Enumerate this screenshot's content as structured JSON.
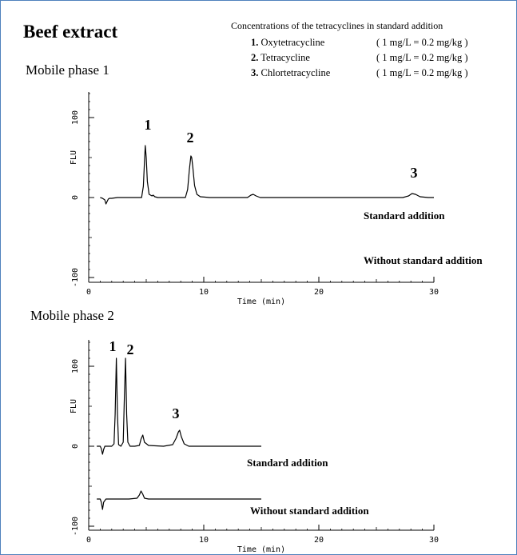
{
  "title": "Beef extract",
  "concentrations": {
    "heading": "Concentrations of the tetracyclines in standard addition",
    "items": [
      {
        "num": "1.",
        "name": "Oxytetracycline",
        "value": "( 1 mg/L = 0.2 mg/kg )"
      },
      {
        "num": "2.",
        "name": "Tetracycline",
        "value": "( 1 mg/L = 0.2 mg/kg )"
      },
      {
        "num": "3.",
        "name": "Chlortetracycline",
        "value": "( 1 mg/L = 0.2 mg/kg )"
      }
    ]
  },
  "phase_labels": [
    "Mobile phase 1",
    "Mobile phase 2"
  ],
  "chart_data": [
    {
      "type": "line",
      "title": "Mobile phase 1",
      "xlabel": "Time (min)",
      "ylabel": "FLU",
      "xlim": [
        0,
        30
      ],
      "ylim": [
        -110,
        135
      ],
      "xticks": [
        0,
        10,
        20,
        30
      ],
      "yticks": [
        -100,
        0,
        100
      ],
      "grid": false,
      "peaks": [
        {
          "label": "1",
          "time": 4.9,
          "height": 65
        },
        {
          "label": "2",
          "time": 8.9,
          "height": 52
        },
        {
          "label": "3",
          "time": 28.2,
          "height": 5
        }
      ],
      "annotations": [
        "Standard addition",
        "Without standard addition"
      ],
      "series": [
        {
          "name": "Standard addition",
          "x": [
            1.0,
            1.2,
            1.4,
            1.5,
            1.6,
            1.7,
            1.8,
            2.0,
            2.5,
            3.0,
            4.0,
            4.6,
            4.75,
            4.85,
            4.92,
            5.0,
            5.1,
            5.25,
            5.5,
            5.6,
            5.75,
            6.0,
            7.0,
            8.4,
            8.6,
            8.75,
            8.88,
            8.95,
            9.05,
            9.2,
            9.4,
            9.7,
            10.5,
            12.0,
            13.8,
            14.1,
            14.3,
            14.55,
            14.9,
            16.0,
            20.0,
            24.0,
            27.3,
            27.8,
            28.1,
            28.4,
            28.8,
            29.5,
            30.0
          ],
          "y": [
            0,
            -1,
            -3,
            -8,
            -5,
            -2,
            -1,
            -1,
            0,
            0,
            0,
            0,
            14,
            45,
            65,
            50,
            20,
            4,
            2,
            3,
            1,
            0,
            0,
            0,
            10,
            35,
            52,
            50,
            38,
            15,
            4,
            1,
            0,
            0,
            0,
            3,
            4,
            2,
            0,
            0,
            0,
            0,
            0,
            2,
            5,
            4,
            1,
            0,
            0
          ]
        }
      ]
    },
    {
      "type": "line",
      "title": "Mobile phase 2",
      "xlabel": "Time (min)",
      "ylabel": "FLU",
      "xlim": [
        0,
        30
      ],
      "ylim": [
        -110,
        135
      ],
      "xticks": [
        0,
        10,
        20,
        30
      ],
      "yticks": [
        -100,
        0,
        100
      ],
      "grid": false,
      "peaks": [
        {
          "label": "1",
          "time": 2.4,
          "height": 110
        },
        {
          "label": "2",
          "time": 3.2,
          "height": 110
        },
        {
          "label": "3",
          "time": 7.9,
          "height": 20
        }
      ],
      "annotations": [
        "Standard addition",
        "Without standard addition"
      ],
      "series": [
        {
          "name": "Standard addition",
          "x": [
            0.7,
            1.0,
            1.1,
            1.2,
            1.3,
            1.4,
            1.6,
            2.0,
            2.2,
            2.3,
            2.4,
            2.5,
            2.6,
            2.8,
            3.0,
            3.1,
            3.2,
            3.3,
            3.4,
            3.6,
            4.0,
            4.4,
            4.55,
            4.7,
            4.85,
            5.2,
            6.5,
            7.3,
            7.6,
            7.8,
            7.9,
            8.05,
            8.3,
            8.7,
            10.0,
            12.0,
            15.0
          ],
          "y": [
            0,
            0,
            -3,
            -10,
            -4,
            0,
            0,
            0,
            3,
            40,
            110,
            40,
            2,
            0,
            5,
            60,
            110,
            40,
            5,
            0,
            0,
            1,
            9,
            14,
            5,
            1,
            0,
            2,
            10,
            18,
            20,
            12,
            3,
            0,
            0,
            0,
            0
          ]
        },
        {
          "name": "Without standard addition",
          "x": [
            0.7,
            1.0,
            1.1,
            1.2,
            1.3,
            1.5,
            2.0,
            3.0,
            3.5,
            4.2,
            4.4,
            4.55,
            4.7,
            4.85,
            5.2,
            6.0,
            7.0,
            8.0,
            10.0,
            12.0,
            15.0
          ],
          "y": [
            -66,
            -66,
            -70,
            -79,
            -70,
            -66,
            -66,
            -66,
            -66,
            -65,
            -61,
            -56,
            -60,
            -65,
            -66,
            -66,
            -66,
            -66,
            -66,
            -66,
            -66
          ]
        }
      ]
    }
  ]
}
